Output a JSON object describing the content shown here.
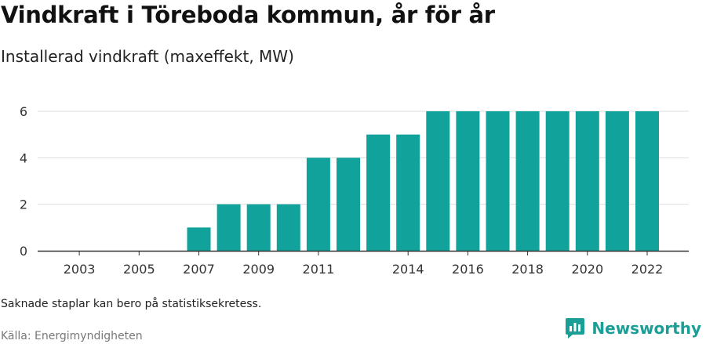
{
  "header": {
    "title": "Vindkraft i Töreboda kommun, år för år",
    "subtitle": "Installerad vindkraft (maxeffekt, MW)"
  },
  "footer": {
    "note": "Saknade staplar kan bero på statistiksekretess.",
    "source": "Källa: Energimyndigheten",
    "brand": "Newsworthy",
    "brand_icon": "newsworthy-logo-icon"
  },
  "colors": {
    "bar": "#11a39b",
    "brand": "#1a9e96",
    "grid": "#dddddd",
    "axis": "#333333"
  },
  "chart_data": {
    "type": "bar",
    "categories": [
      "2002",
      "2003",
      "2004",
      "2005",
      "2006",
      "2007",
      "2008",
      "2009",
      "2010",
      "2011",
      "2012",
      "2013",
      "2014",
      "2015",
      "2016",
      "2017",
      "2018",
      "2019",
      "2020",
      "2021",
      "2022"
    ],
    "values": [
      0,
      0,
      0,
      0,
      0,
      1,
      2,
      2,
      2,
      4,
      4,
      5,
      5,
      6,
      6,
      6,
      6,
      6,
      6,
      6,
      6
    ],
    "x_tick_labels": [
      "2003",
      "2005",
      "2007",
      "2009",
      "2011",
      "2014",
      "2016",
      "2018",
      "2020",
      "2022"
    ],
    "y_ticks": [
      0,
      2,
      4,
      6
    ],
    "ylim": [
      0,
      6.5
    ],
    "title": "Vindkraft i Töreboda kommun, år för år",
    "subtitle": "Installerad vindkraft (maxeffekt, MW)",
    "grid": true
  }
}
